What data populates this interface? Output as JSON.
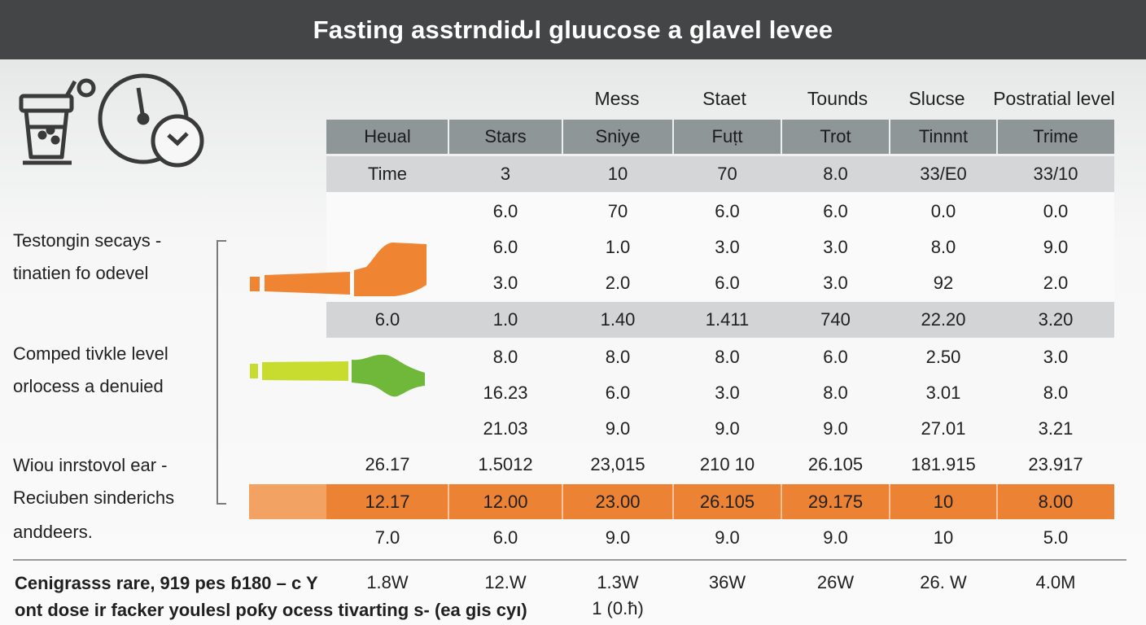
{
  "title": "Fasting asstrndiԃl gluucose a glavel levee",
  "top_headers": [
    "Mess",
    "Staet",
    "Tounds",
    "Slucse",
    "Postratial level"
  ],
  "header_row": [
    "Heual",
    "Stars",
    "Sniye",
    "Fuṭt",
    "Trot",
    "Tinnnt",
    "Trime"
  ],
  "rows": [
    {
      "style": "subhead",
      "cells": [
        "Time",
        "3",
        "10",
        "70",
        "8.0",
        "33/E0",
        "33/10"
      ]
    },
    {
      "style": "plain",
      "cells": [
        "",
        "6.0",
        "70",
        "6.0",
        "6.0",
        "0.0",
        "0.0"
      ]
    },
    {
      "style": "plain",
      "cells": [
        "",
        "6.0",
        "1.0",
        "3.0",
        "3.0",
        "8.0",
        "9.0"
      ]
    },
    {
      "style": "plain",
      "cells": [
        "",
        "3.0",
        "2.0",
        "6.0",
        "3.0",
        "92",
        "2.0"
      ]
    },
    {
      "style": "band",
      "cells": [
        "6.0",
        "1.0",
        "1.40",
        "1.411",
        "740",
        "22.20",
        "3.20"
      ]
    },
    {
      "style": "plain",
      "cells": [
        "",
        "8.0",
        "8.0",
        "8.0",
        "6.0",
        "2.50",
        "3.0"
      ]
    },
    {
      "style": "plain",
      "cells": [
        "",
        "16.23",
        "6.0",
        "3.0",
        "8.0",
        "3.01",
        "8.0"
      ]
    },
    {
      "style": "plain",
      "cells": [
        "",
        "21.03",
        "9.0",
        "9.0",
        "9.0",
        "27.01",
        "3.21"
      ]
    },
    {
      "style": "plain",
      "cells": [
        "26.17",
        "1.5012",
        "23,015",
        "210 10",
        "26.105",
        "181.915",
        "23.917"
      ]
    },
    {
      "style": "orange",
      "cells": [
        "12.17",
        "12.00",
        "23.00",
        "26.105",
        "29.175",
        "10",
        "8.00"
      ]
    },
    {
      "style": "plain",
      "cells": [
        "7.0",
        "6.0",
        "9.0",
        "9.0",
        "9.0",
        "10",
        "5.0"
      ]
    }
  ],
  "footer_row": [
    "1.8W",
    "12.W",
    "1.3W",
    "36W",
    "26W",
    "26. W",
    "4.0M"
  ],
  "footer_sub": "1 (0.ћ)",
  "side_labels": {
    "group1": [
      "Testongin secays -",
      "tinatien fo odevel"
    ],
    "group2": [
      "Comped tivkle level",
      "orlocess a denuied"
    ],
    "group3": [
      "Wiou inrstovol ear -",
      "Reciuben sinderichs",
      "anddeers."
    ]
  },
  "footer_labels": [
    "Cenigrasss rare, 919 pes ɓ180 – c Y",
    "ont dose ir facker youlesl poƙy ocess tivarting s- (ea gis cyı)"
  ],
  "icons": [
    "drink-cup-icon",
    "wall-clock-icon",
    "small-clock-icon"
  ],
  "colors": {
    "title_bar": "#434547",
    "header_row": "#8f9698",
    "subhead_row": "#d4d6d7",
    "highlight_orange": "#ec8233",
    "orange_pointer": "#ef8533",
    "green_pointer": "#6fb83a",
    "lime_pointer": "#c7dc2e"
  }
}
